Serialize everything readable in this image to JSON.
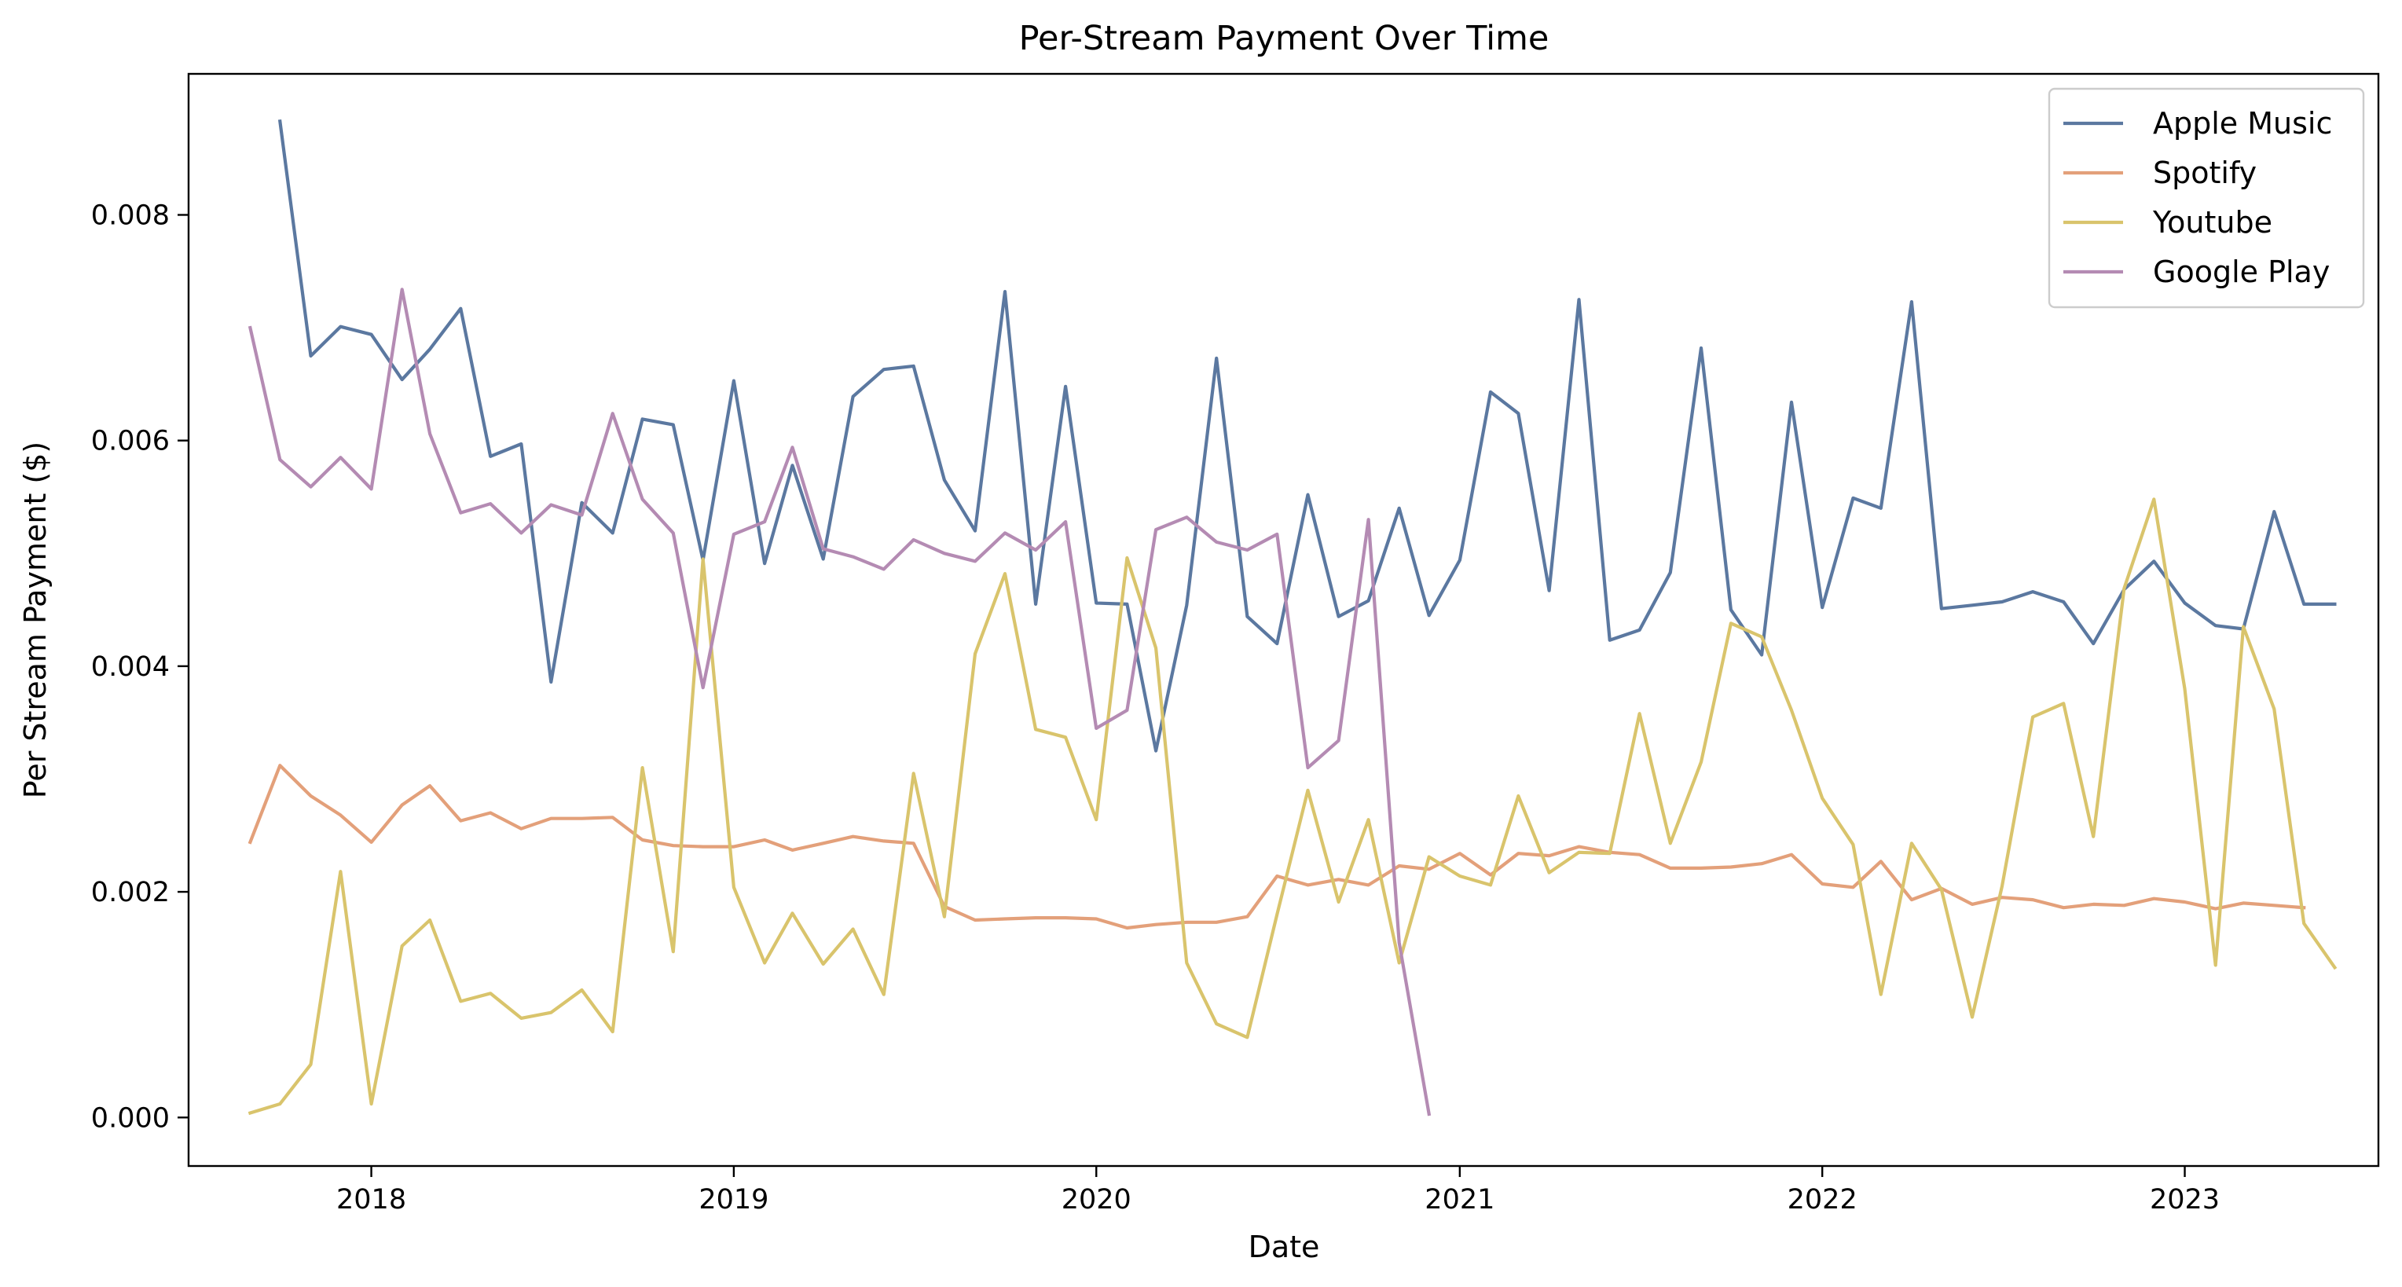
{
  "chart_data": {
    "type": "line",
    "title": "Per-Stream Payment Over Time",
    "xlabel": "Date",
    "ylabel": "Per Stream Payment ($)",
    "xlim": [
      "2017-07-01",
      "2023-07-15"
    ],
    "ylim": [
      -0.00043,
      0.00925
    ],
    "x_ticks": [
      "2018",
      "2019",
      "2020",
      "2021",
      "2022",
      "2023"
    ],
    "x_tick_dates": [
      "2018-01-01",
      "2019-01-01",
      "2020-01-01",
      "2021-01-01",
      "2022-01-01",
      "2023-01-01"
    ],
    "y_ticks": [
      "0.000",
      "0.002",
      "0.004",
      "0.006",
      "0.008"
    ],
    "y_tick_values": [
      0,
      0.002,
      0.004,
      0.006,
      0.008
    ],
    "grid": false,
    "legend_position": "top-right",
    "start_month": "2017-09",
    "series": [
      {
        "name": "Apple Music",
        "color": "#5b78a0",
        "start": "2017-10",
        "values": [
          0.00883,
          0.00675,
          0.00701,
          0.00694,
          0.00654,
          0.00681,
          0.00717,
          0.00586,
          0.00597,
          0.00386,
          0.00545,
          0.00518,
          0.00619,
          0.00614,
          0.00494,
          0.00653,
          0.00491,
          0.00578,
          0.00495,
          0.00639,
          0.00663,
          0.00666,
          0.00565,
          0.0052,
          0.00732,
          0.00455,
          0.00648,
          0.00456,
          0.00455,
          0.00325,
          0.00454,
          0.00673,
          0.00444,
          0.0042,
          0.00552,
          0.00444,
          0.00458,
          0.0054,
          0.00445,
          0.00494,
          0.00643,
          0.00624,
          0.00467,
          0.00725,
          0.00423,
          0.00432,
          0.00483,
          0.00682,
          0.0045,
          0.0041,
          0.00634,
          0.00452,
          0.00549,
          0.0054,
          0.00723,
          0.00451,
          0.00454,
          0.00457,
          0.00466,
          0.00457,
          0.0042,
          0.00468,
          0.00493,
          0.00456,
          0.00436,
          0.00433,
          0.00537,
          0.00455,
          0.00455
        ]
      },
      {
        "name": "Spotify",
        "color": "#e3a07a",
        "start": "2017-09",
        "values": [
          0.00244,
          0.00312,
          0.00285,
          0.00268,
          0.00244,
          0.00277,
          0.00294,
          0.00263,
          0.0027,
          0.00256,
          0.00265,
          0.00265,
          0.00266,
          0.00246,
          0.00241,
          0.0024,
          0.0024,
          0.00246,
          0.00237,
          0.00243,
          0.00249,
          0.00245,
          0.00243,
          0.00187,
          0.00175,
          0.00176,
          0.00177,
          0.00177,
          0.00176,
          0.00168,
          0.00171,
          0.00173,
          0.00173,
          0.00178,
          0.00214,
          0.00206,
          0.00211,
          0.00206,
          0.00223,
          0.0022,
          0.00234,
          0.00215,
          0.00234,
          0.00232,
          0.0024,
          0.00235,
          0.00233,
          0.00221,
          0.00221,
          0.00222,
          0.00225,
          0.00233,
          0.00207,
          0.00204,
          0.00227,
          0.00193,
          0.00203,
          0.00189,
          0.00195,
          0.00193,
          0.00186,
          0.00189,
          0.00188,
          0.00194,
          0.00191,
          0.00185,
          0.0019,
          0.00188,
          0.00186
        ]
      },
      {
        "name": "Youtube",
        "color": "#d9c46c",
        "start": "2017-09",
        "values": [
          4e-05,
          0.00012,
          0.00047,
          0.00218,
          0.00012,
          0.00152,
          0.00175,
          0.00103,
          0.0011,
          0.00088,
          0.00093,
          0.00113,
          0.00076,
          0.0031,
          0.00147,
          0.00495,
          0.00204,
          0.00137,
          0.00181,
          0.00136,
          0.00167,
          0.00109,
          0.00305,
          0.00178,
          0.00411,
          0.00482,
          0.00344,
          0.00337,
          0.00264,
          0.00496,
          0.00416,
          0.00137,
          0.00083,
          0.00071,
          0.0018,
          0.0029,
          0.00191,
          0.00264,
          0.00137,
          0.00231,
          0.00214,
          0.00206,
          0.00285,
          0.00217,
          0.00235,
          0.00234,
          0.00358,
          0.00243,
          0.00315,
          0.00438,
          0.00426,
          0.00361,
          0.00283,
          0.00242,
          0.00109,
          0.00243,
          0.00202,
          0.00089,
          0.00205,
          0.00355,
          0.00367,
          0.00249,
          0.00469,
          0.00548,
          0.0038,
          0.00135,
          0.00435,
          0.00362,
          0.00172,
          0.00133
        ]
      },
      {
        "name": "Google Play",
        "color": "#b48bb3",
        "start": "2017-09",
        "values": [
          0.007,
          0.00583,
          0.00559,
          0.00585,
          0.00557,
          0.00734,
          0.00606,
          0.00536,
          0.00544,
          0.00518,
          0.00543,
          0.00534,
          0.00624,
          0.00548,
          0.00518,
          0.00381,
          0.00517,
          0.00528,
          0.00594,
          0.00504,
          0.00497,
          0.00486,
          0.00512,
          0.005,
          0.00493,
          0.00518,
          0.00503,
          0.00528,
          0.00345,
          0.00361,
          0.00521,
          0.00532,
          0.0051,
          0.00503,
          0.00517,
          0.0031,
          0.00334,
          0.0053,
          0.00155,
          3e-05
        ]
      }
    ]
  }
}
